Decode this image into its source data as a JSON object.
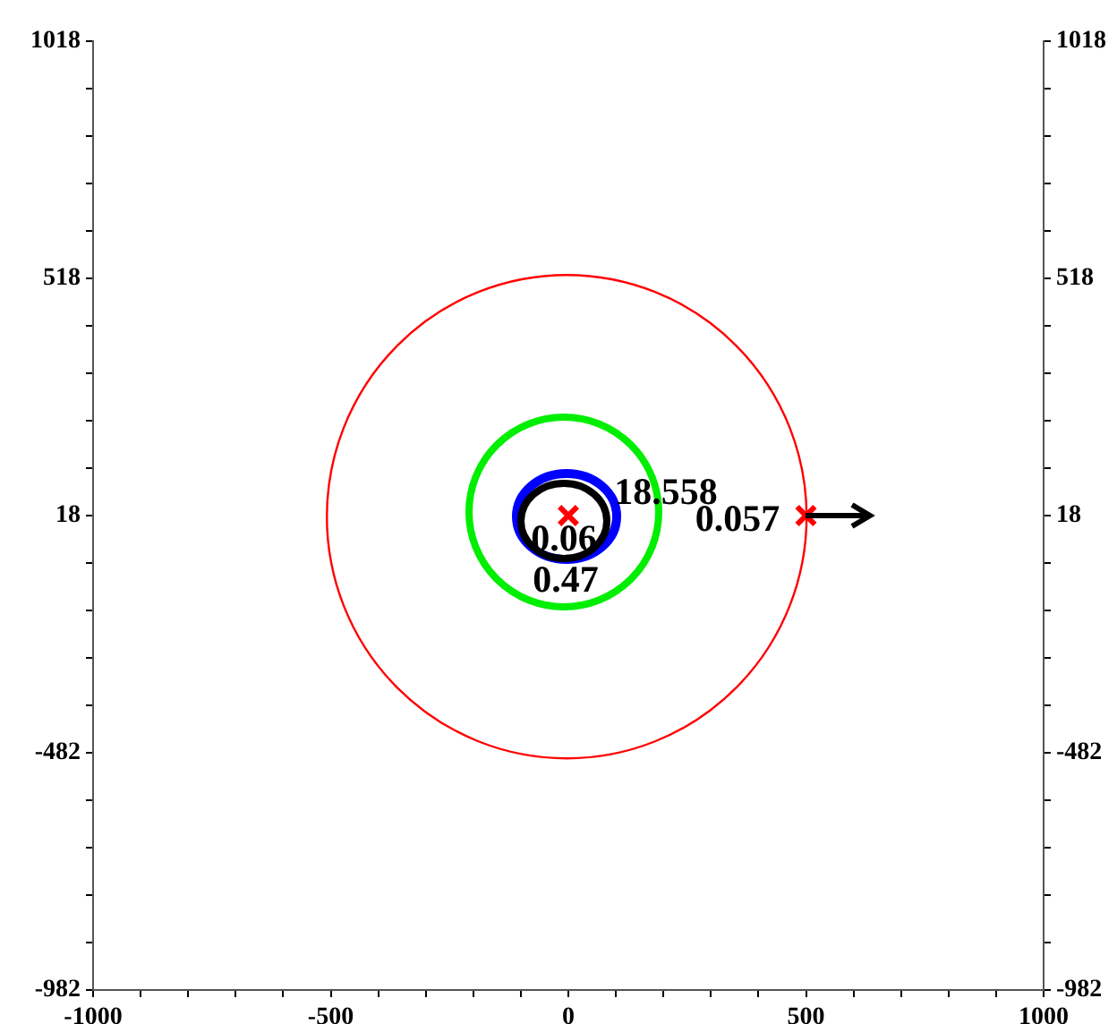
{
  "chart_data": {
    "type": "scatter",
    "xlim": [
      -1000,
      1000
    ],
    "xticks": [
      {
        "value": -1000,
        "label": "-1000"
      },
      {
        "value": -900,
        "label": null
      },
      {
        "value": -800,
        "label": null
      },
      {
        "value": -700,
        "label": null
      },
      {
        "value": -600,
        "label": null
      },
      {
        "value": -500,
        "label": "-500"
      },
      {
        "value": -400,
        "label": null
      },
      {
        "value": -300,
        "label": null
      },
      {
        "value": -200,
        "label": null
      },
      {
        "value": -100,
        "label": null
      },
      {
        "value": 0,
        "label": "0"
      },
      {
        "value": 100,
        "label": null
      },
      {
        "value": 200,
        "label": null
      },
      {
        "value": 300,
        "label": null
      },
      {
        "value": 400,
        "label": null
      },
      {
        "value": 500,
        "label": "500"
      },
      {
        "value": 600,
        "label": null
      },
      {
        "value": 700,
        "label": null
      },
      {
        "value": 800,
        "label": null
      },
      {
        "value": 900,
        "label": null
      },
      {
        "value": 1000,
        "label": "1000"
      }
    ],
    "ylim": [
      -982,
      1018
    ],
    "yticks": [
      {
        "value": -982,
        "label": "-982"
      },
      {
        "value": -882,
        "label": null
      },
      {
        "value": -782,
        "label": null
      },
      {
        "value": -682,
        "label": null
      },
      {
        "value": -582,
        "label": null
      },
      {
        "value": -482,
        "label": "-482"
      },
      {
        "value": -382,
        "label": null
      },
      {
        "value": -282,
        "label": null
      },
      {
        "value": -182,
        "label": null
      },
      {
        "value": -82,
        "label": null
      },
      {
        "value": 18,
        "label": "18"
      },
      {
        "value": 118,
        "label": null
      },
      {
        "value": 218,
        "label": null
      },
      {
        "value": 318,
        "label": null
      },
      {
        "value": 418,
        "label": null
      },
      {
        "value": 518,
        "label": "518"
      },
      {
        "value": 618,
        "label": null
      },
      {
        "value": 718,
        "label": null
      },
      {
        "value": 818,
        "label": null
      },
      {
        "value": 918,
        "label": null
      },
      {
        "value": 1018,
        "label": "1018"
      }
    ],
    "y2lim": [
      -982,
      1018
    ],
    "y2ticks": [
      {
        "value": -982,
        "label": "-982"
      },
      {
        "value": -882,
        "label": null
      },
      {
        "value": -782,
        "label": null
      },
      {
        "value": -682,
        "label": null
      },
      {
        "value": -582,
        "label": null
      },
      {
        "value": -482,
        "label": "-482"
      },
      {
        "value": -382,
        "label": null
      },
      {
        "value": -282,
        "label": null
      },
      {
        "value": -182,
        "label": null
      },
      {
        "value": -82,
        "label": null
      },
      {
        "value": 18,
        "label": "18"
      },
      {
        "value": 118,
        "label": null
      },
      {
        "value": 218,
        "label": null
      },
      {
        "value": 318,
        "label": null
      },
      {
        "value": 418,
        "label": null
      },
      {
        "value": 518,
        "label": "518"
      },
      {
        "value": 618,
        "label": null
      },
      {
        "value": 718,
        "label": null
      },
      {
        "value": 818,
        "label": null
      },
      {
        "value": 918,
        "label": null
      },
      {
        "value": 1018,
        "label": "1018"
      }
    ],
    "grid": false,
    "legend": false,
    "marker": "cross",
    "series": [
      {
        "color": "#ff0000",
        "x": [
          0,
          500
        ],
        "values": [
          18,
          18
        ]
      }
    ],
    "annotations": [
      "18.558",
      "0.057",
      "0.06",
      "0.47"
    ]
  }
}
